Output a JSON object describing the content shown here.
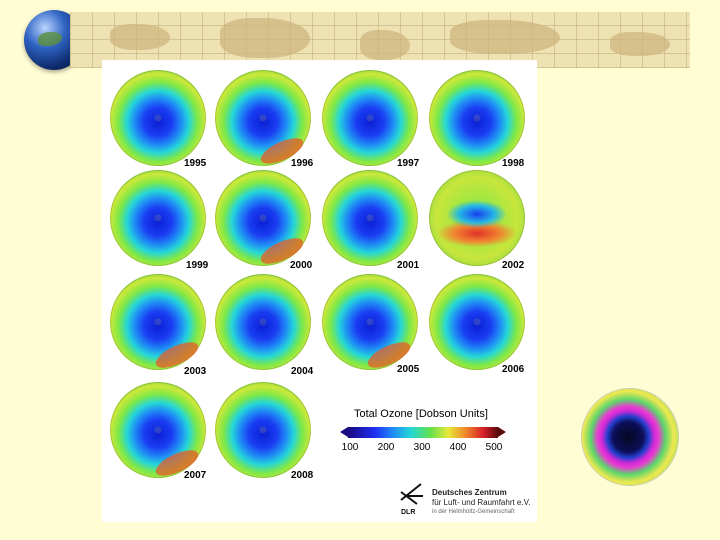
{
  "slide": {
    "decorations": {
      "banner_icon": "world-map-strip",
      "logo_icon": "globe-icon"
    },
    "maps": [
      {
        "year": "1995"
      },
      {
        "year": "1996"
      },
      {
        "year": "1997"
      },
      {
        "year": "1998"
      },
      {
        "year": "1999"
      },
      {
        "year": "2000"
      },
      {
        "year": "2001"
      },
      {
        "year": "2002"
      },
      {
        "year": "2003"
      },
      {
        "year": "2004"
      },
      {
        "year": "2005"
      },
      {
        "year": "2006"
      },
      {
        "year": "2007"
      },
      {
        "year": "2008"
      }
    ],
    "legend": {
      "title": "Total Ozone [Dobson Units]",
      "ticks": [
        "100",
        "200",
        "300",
        "400",
        "500"
      ]
    },
    "credit": {
      "org_line1": "Deutsches Zentrum",
      "org_line2": "für Luft- und Raumfahrt e.V.",
      "org_sub": "in der Helmholtz-Gemeinschaft",
      "abbr": "DLR"
    }
  }
}
